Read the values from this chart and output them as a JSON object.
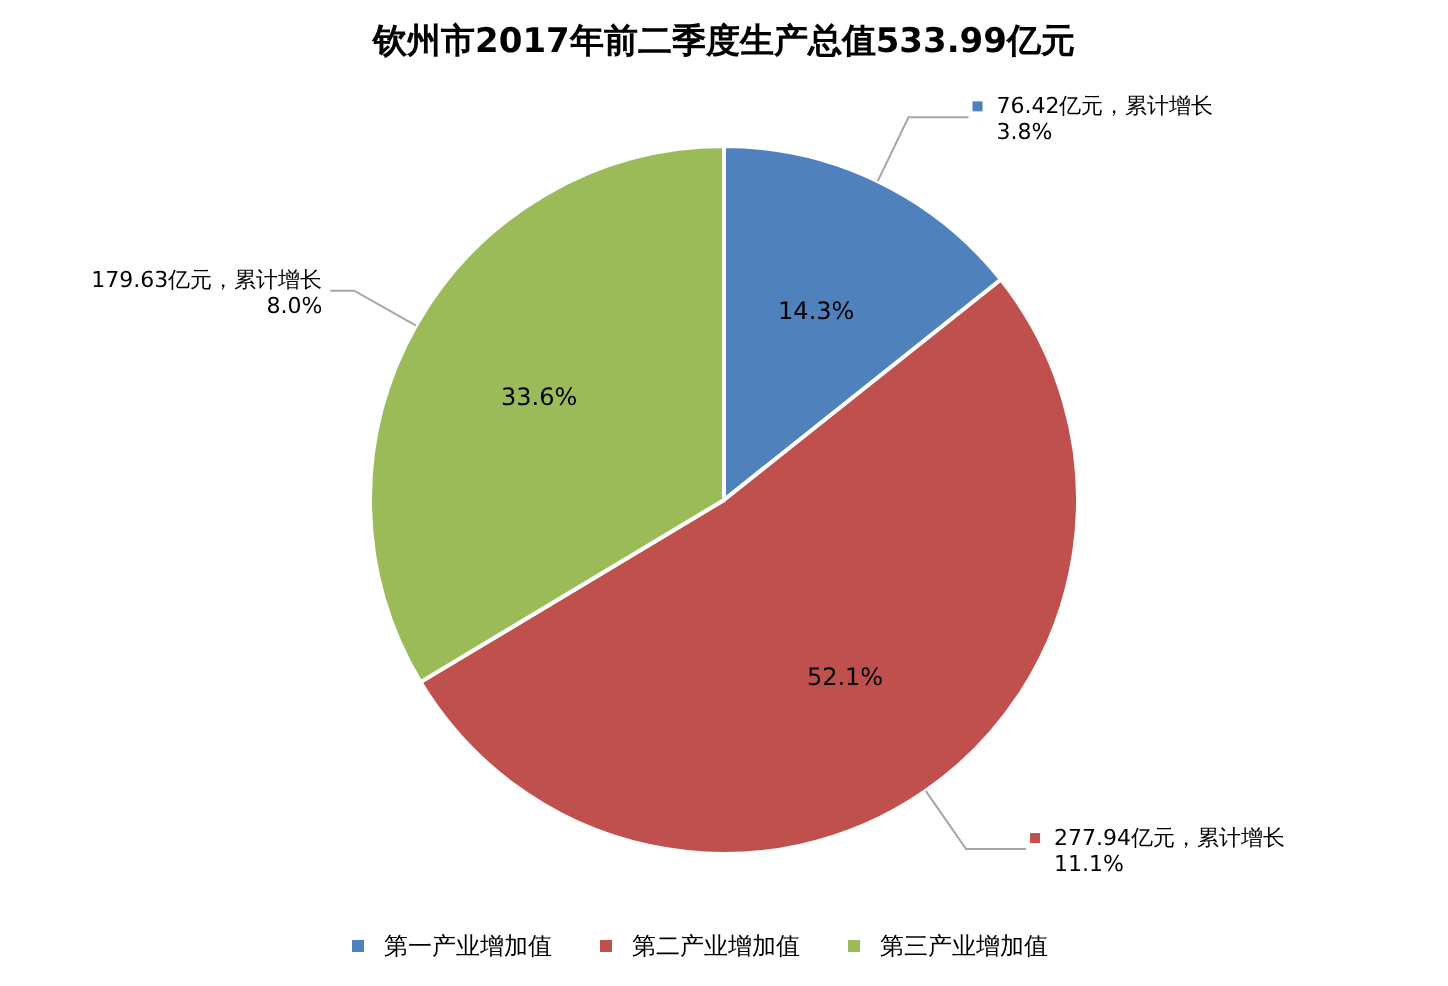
{
  "chart_data": {
    "type": "pie",
    "title": "钦州市2017年前二季度生产总值533.99亿元",
    "categories": [
      "第一产业增加值",
      "第二产业增加值",
      "第三产业增加值"
    ],
    "values": [
      14.3,
      52.1,
      33.6
    ],
    "colors": [
      "#4f81bd",
      "#c0504d",
      "#9bbb59"
    ],
    "value_labels": [
      "14.3%",
      "52.1%",
      "33.6%"
    ],
    "legend": "bottom",
    "annotations": [
      "76.42亿元，累计增长\n3.8%",
      "277.94亿元，累计增长\n11.1%",
      "179.63亿元，累计增长\n8.0%"
    ]
  }
}
